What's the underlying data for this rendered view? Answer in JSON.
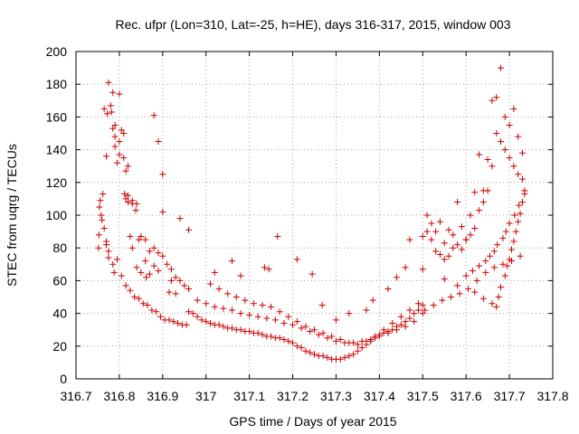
{
  "chart_data": {
    "type": "scatter",
    "title": "Rec. ufpr (Lon=310, Lat=-25, h=HE), days 316-317, 2015, window 003",
    "xlabel": "GPS time / Days of year 2015",
    "ylabel": "STEC from uqrg / TECUs",
    "xlim": [
      316.7,
      317.8
    ],
    "ylim": [
      0,
      200
    ],
    "xticks": [
      "316.7",
      "316.8",
      "316.9",
      "317",
      "317.1",
      "317.2",
      "317.3",
      "317.4",
      "317.5",
      "317.6",
      "317.7",
      "317.8"
    ],
    "yticks": [
      "0",
      "20",
      "40",
      "60",
      "80",
      "100",
      "120",
      "140",
      "160",
      "180",
      "200"
    ],
    "grid": true,
    "marker": "plus",
    "color": "#cc0000",
    "series": [
      {
        "x": [
          316.752,
          316.753,
          316.754,
          316.756,
          316.758,
          316.762,
          316.765,
          316.77,
          316.772,
          316.775,
          316.78,
          316.782,
          316.785,
          316.788,
          316.79,
          316.795,
          316.8,
          316.805,
          316.81,
          316.815,
          316.82,
          316.83,
          316.84,
          316.85,
          316.86,
          316.87,
          316.88,
          316.89,
          316.9,
          316.91,
          316.92,
          316.93,
          316.94,
          316.95,
          316.96,
          316.76,
          316.765,
          316.77,
          316.775,
          316.785,
          316.795,
          316.805,
          316.815,
          316.825,
          316.835,
          316.845,
          316.855,
          316.865,
          316.875,
          316.885,
          316.895,
          316.905,
          316.915,
          316.925,
          316.935,
          316.945,
          316.955,
          316.77,
          316.785,
          316.79,
          316.8,
          316.81,
          316.82,
          316.825,
          316.83,
          316.84,
          316.85,
          316.862,
          316.87,
          316.88,
          316.89,
          316.9,
          316.92,
          316.94,
          316.96,
          316.775,
          316.79,
          316.8,
          316.812,
          316.815,
          316.82,
          316.83,
          316.838,
          316.845,
          316.86,
          316.88,
          316.89,
          316.9,
          316.915,
          316.93,
          316.96,
          316.97,
          316.98,
          316.99,
          317.0,
          317.01,
          317.02,
          317.03,
          317.04,
          317.05,
          317.06,
          317.07,
          317.08,
          317.09,
          317.1,
          317.11,
          317.12,
          317.13,
          317.14,
          317.15,
          317.16,
          317.17,
          317.18,
          317.19,
          317.2,
          317.21,
          317.22,
          317.23,
          317.24,
          317.25,
          317.26,
          317.27,
          317.28,
          317.29,
          317.3,
          317.31,
          317.32,
          317.33,
          317.34,
          317.35,
          317.36,
          317.37,
          317.38,
          317.39,
          317.4,
          317.41,
          317.42,
          317.43,
          317.44,
          317.45,
          317.46,
          317.47,
          317.48,
          317.49,
          317.5,
          316.98,
          317.0,
          317.02,
          317.04,
          317.06,
          317.08,
          317.1,
          317.12,
          317.14,
          317.16,
          317.18,
          317.2,
          317.22,
          317.24,
          317.26,
          317.28,
          317.3,
          317.32,
          317.34,
          317.36,
          317.38,
          317.4,
          317.42,
          317.44,
          317.46,
          317.48,
          317.5,
          317.01,
          317.03,
          317.05,
          317.07,
          317.09,
          317.11,
          317.13,
          317.15,
          317.17,
          317.19,
          317.21,
          317.23,
          317.25,
          317.27,
          317.29,
          317.31,
          317.33,
          317.35,
          317.37,
          317.39,
          317.41,
          317.43,
          317.45,
          317.47,
          317.49,
          317.02,
          317.06,
          317.08,
          317.135,
          317.145,
          317.165,
          317.21,
          317.245,
          317.268,
          317.3,
          317.33,
          317.37,
          317.385,
          317.42,
          317.44,
          317.46,
          317.47,
          317.5,
          317.51,
          317.52,
          317.53,
          317.54,
          317.55,
          317.56,
          317.57,
          317.58,
          317.59,
          317.6,
          317.61,
          317.62,
          317.63,
          317.64,
          317.65,
          317.66,
          317.67,
          317.68,
          317.69,
          317.7,
          317.71,
          317.72,
          317.73,
          317.5,
          317.51,
          317.52,
          317.53,
          317.54,
          317.55,
          317.56,
          317.57,
          317.58,
          317.59,
          317.6,
          317.61,
          317.62,
          317.63,
          317.64,
          317.65,
          317.66,
          317.67,
          317.68,
          317.69,
          317.7,
          317.71,
          317.72,
          317.73,
          317.505,
          317.525,
          317.545,
          317.565,
          317.585,
          317.605,
          317.625,
          317.645,
          317.665,
          317.685,
          317.705,
          317.725,
          317.55,
          317.58,
          317.62,
          317.64,
          317.66,
          317.67,
          317.675,
          317.68,
          317.69,
          317.695,
          317.7,
          317.705,
          317.71,
          317.715,
          317.72,
          317.725,
          317.73,
          317.735,
          317.6,
          317.615,
          317.63,
          317.645,
          317.655,
          317.665,
          317.672,
          317.685,
          317.692,
          317.7,
          317.712,
          317.722,
          317.735
        ],
        "y": [
          80,
          88,
          105,
          109,
          100,
          113,
          165,
          82,
          162,
          78,
          167,
          163,
          175,
          65,
          155,
          132,
          174,
          152,
          150,
          127,
          130,
          107,
          107,
          87,
          85,
          78,
          80,
          77,
          75,
          70,
          67,
          62,
          60,
          57,
          55,
          97,
          92,
          84,
          74,
          70,
          73,
          63,
          57,
          54,
          50,
          49,
          46,
          45,
          42,
          41,
          38,
          36,
          36,
          35,
          34,
          33,
          33,
          136,
          153,
          148,
          145,
          135,
          112,
          87,
          80,
          68,
          65,
          62,
          64,
          161,
          145,
          102,
          60,
          98,
          91,
          181,
          142,
          137,
          113,
          110,
          108,
          109,
          103,
          85,
          72,
          69,
          66,
          125,
          53,
          52,
          41,
          40,
          38,
          36,
          35,
          34,
          33,
          33,
          32,
          31,
          31,
          30,
          30,
          29,
          29,
          28,
          28,
          27,
          26,
          26,
          25,
          25,
          24,
          23,
          22,
          20,
          19,
          17,
          16,
          15,
          14,
          14,
          13,
          12,
          12,
          12,
          13,
          14,
          15,
          17,
          19,
          21,
          23,
          25,
          27,
          28,
          29,
          30,
          32,
          33,
          35,
          37,
          40,
          42,
          45,
          48,
          46,
          44,
          43,
          42,
          40,
          39,
          38,
          37,
          36,
          34,
          33,
          31,
          29,
          27,
          25,
          23,
          22,
          22,
          23,
          24,
          26,
          28,
          30,
          32,
          35,
          40,
          58,
          55,
          52,
          50,
          48,
          46,
          45,
          44,
          41,
          38,
          35,
          32,
          30,
          28,
          26,
          24,
          22,
          21,
          23,
          26,
          30,
          34,
          38,
          42,
          46,
          65,
          72,
          63,
          68,
          67,
          87,
          73,
          64,
          45,
          36,
          40,
          42,
          48,
          55,
          62,
          68,
          85,
          67,
          100,
          95,
          90,
          96,
          83,
          91,
          88,
          108,
          93,
          85,
          100,
          114,
          137,
          115,
          134,
          170,
          172,
          190,
          160,
          155,
          165,
          148,
          138,
          87,
          90,
          85,
          78,
          76,
          73,
          75,
          80,
          82,
          79,
          85,
          88,
          92,
          103,
          108,
          115,
          130,
          150,
          145,
          140,
          135,
          130,
          125,
          122,
          42,
          45,
          48,
          50,
          52,
          55,
          60,
          65,
          68,
          70,
          72,
          75,
          61,
          57,
          53,
          49,
          46,
          44,
          50,
          56,
          63,
          69,
          73,
          79,
          84,
          90,
          96,
          101,
          108,
          115,
          63,
          66,
          69,
          72,
          75,
          78,
          82,
          86,
          90,
          95,
          100,
          106,
          113
        ]
      }
    ]
  }
}
